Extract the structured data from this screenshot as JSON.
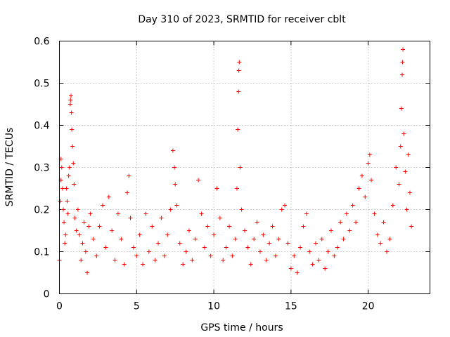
{
  "chart_data": {
    "type": "scatter",
    "title": "Day 310 of 2023, SRMTID for receiver cblt",
    "xlabel": "GPS time / hours",
    "ylabel": "SRMTID / TECUs",
    "xlim": [
      0,
      24
    ],
    "ylim": [
      0,
      0.6
    ],
    "x_ticks": [
      0,
      5,
      10,
      15,
      20
    ],
    "y_ticks": [
      0,
      0.1,
      0.2,
      0.3,
      0.4,
      0.5,
      0.6
    ],
    "x_tick_labels": [
      "0",
      "5",
      "10",
      "15",
      "20"
    ],
    "y_tick_labels": [
      "0",
      "0.1",
      "0.2",
      "0.3",
      "0.4",
      "0.5",
      "0.6"
    ],
    "grid": true,
    "series": [
      {
        "name": "SRMTID",
        "marker": "plus",
        "color": "#ff0000",
        "points": [
          [
            0.0,
            0.08
          ],
          [
            0.05,
            0.22
          ],
          [
            0.1,
            0.27
          ],
          [
            0.1,
            0.32
          ],
          [
            0.15,
            0.3
          ],
          [
            0.2,
            0.25
          ],
          [
            0.25,
            0.2
          ],
          [
            0.3,
            0.17
          ],
          [
            0.35,
            0.12
          ],
          [
            0.4,
            0.14
          ],
          [
            0.45,
            0.25
          ],
          [
            0.5,
            0.22
          ],
          [
            0.55,
            0.19
          ],
          [
            0.6,
            0.28
          ],
          [
            0.65,
            0.3
          ],
          [
            0.7,
            0.45
          ],
          [
            0.72,
            0.46
          ],
          [
            0.75,
            0.47
          ],
          [
            0.78,
            0.43
          ],
          [
            0.8,
            0.39
          ],
          [
            0.85,
            0.35
          ],
          [
            0.9,
            0.31
          ],
          [
            0.95,
            0.26
          ],
          [
            1.0,
            0.18
          ],
          [
            1.1,
            0.15
          ],
          [
            1.2,
            0.2
          ],
          [
            1.3,
            0.14
          ],
          [
            1.4,
            0.08
          ],
          [
            1.5,
            0.12
          ],
          [
            1.6,
            0.17
          ],
          [
            1.7,
            0.1
          ],
          [
            1.8,
            0.05
          ],
          [
            1.9,
            0.16
          ],
          [
            2.0,
            0.19
          ],
          [
            2.2,
            0.13
          ],
          [
            2.4,
            0.09
          ],
          [
            2.6,
            0.16
          ],
          [
            2.8,
            0.21
          ],
          [
            3.0,
            0.11
          ],
          [
            3.2,
            0.23
          ],
          [
            3.4,
            0.15
          ],
          [
            3.6,
            0.08
          ],
          [
            3.8,
            0.19
          ],
          [
            4.0,
            0.13
          ],
          [
            4.2,
            0.07
          ],
          [
            4.4,
            0.24
          ],
          [
            4.5,
            0.28
          ],
          [
            4.6,
            0.18
          ],
          [
            4.8,
            0.11
          ],
          [
            5.0,
            0.09
          ],
          [
            5.2,
            0.14
          ],
          [
            5.4,
            0.07
          ],
          [
            5.6,
            0.19
          ],
          [
            5.8,
            0.1
          ],
          [
            6.0,
            0.16
          ],
          [
            6.2,
            0.08
          ],
          [
            6.4,
            0.12
          ],
          [
            6.6,
            0.18
          ],
          [
            6.8,
            0.09
          ],
          [
            7.0,
            0.14
          ],
          [
            7.2,
            0.2
          ],
          [
            7.35,
            0.34
          ],
          [
            7.45,
            0.3
          ],
          [
            7.5,
            0.26
          ],
          [
            7.6,
            0.21
          ],
          [
            7.8,
            0.12
          ],
          [
            8.0,
            0.07
          ],
          [
            8.2,
            0.1
          ],
          [
            8.4,
            0.15
          ],
          [
            8.6,
            0.08
          ],
          [
            8.8,
            0.13
          ],
          [
            9.0,
            0.27
          ],
          [
            9.2,
            0.19
          ],
          [
            9.4,
            0.11
          ],
          [
            9.6,
            0.16
          ],
          [
            9.8,
            0.09
          ],
          [
            10.0,
            0.14
          ],
          [
            10.2,
            0.25
          ],
          [
            10.4,
            0.18
          ],
          [
            10.6,
            0.08
          ],
          [
            10.8,
            0.11
          ],
          [
            11.0,
            0.16
          ],
          [
            11.2,
            0.09
          ],
          [
            11.4,
            0.13
          ],
          [
            11.5,
            0.25
          ],
          [
            11.55,
            0.39
          ],
          [
            11.6,
            0.48
          ],
          [
            11.62,
            0.53
          ],
          [
            11.65,
            0.55
          ],
          [
            11.7,
            0.3
          ],
          [
            11.8,
            0.2
          ],
          [
            12.0,
            0.15
          ],
          [
            12.2,
            0.11
          ],
          [
            12.4,
            0.07
          ],
          [
            12.6,
            0.13
          ],
          [
            12.8,
            0.17
          ],
          [
            13.0,
            0.1
          ],
          [
            13.2,
            0.14
          ],
          [
            13.4,
            0.08
          ],
          [
            13.6,
            0.12
          ],
          [
            13.8,
            0.16
          ],
          [
            14.0,
            0.09
          ],
          [
            14.2,
            0.13
          ],
          [
            14.4,
            0.2
          ],
          [
            14.6,
            0.21
          ],
          [
            14.8,
            0.12
          ],
          [
            15.0,
            0.06
          ],
          [
            15.2,
            0.09
          ],
          [
            15.4,
            0.05
          ],
          [
            15.6,
            0.11
          ],
          [
            15.8,
            0.16
          ],
          [
            16.0,
            0.19
          ],
          [
            16.2,
            0.1
          ],
          [
            16.4,
            0.07
          ],
          [
            16.6,
            0.12
          ],
          [
            16.8,
            0.08
          ],
          [
            17.0,
            0.13
          ],
          [
            17.2,
            0.06
          ],
          [
            17.4,
            0.1
          ],
          [
            17.6,
            0.15
          ],
          [
            17.8,
            0.09
          ],
          [
            18.0,
            0.11
          ],
          [
            18.2,
            0.17
          ],
          [
            18.4,
            0.13
          ],
          [
            18.6,
            0.19
          ],
          [
            18.8,
            0.15
          ],
          [
            19.0,
            0.21
          ],
          [
            19.2,
            0.17
          ],
          [
            19.4,
            0.25
          ],
          [
            19.6,
            0.28
          ],
          [
            19.8,
            0.23
          ],
          [
            20.0,
            0.31
          ],
          [
            20.1,
            0.33
          ],
          [
            20.2,
            0.27
          ],
          [
            20.4,
            0.19
          ],
          [
            20.6,
            0.14
          ],
          [
            20.8,
            0.12
          ],
          [
            21.0,
            0.17
          ],
          [
            21.2,
            0.1
          ],
          [
            21.4,
            0.13
          ],
          [
            21.6,
            0.21
          ],
          [
            21.8,
            0.3
          ],
          [
            22.0,
            0.26
          ],
          [
            22.1,
            0.35
          ],
          [
            22.15,
            0.44
          ],
          [
            22.2,
            0.52
          ],
          [
            22.22,
            0.55
          ],
          [
            22.25,
            0.58
          ],
          [
            22.3,
            0.38
          ],
          [
            22.4,
            0.29
          ],
          [
            22.5,
            0.2
          ],
          [
            22.6,
            0.33
          ],
          [
            22.7,
            0.24
          ],
          [
            22.8,
            0.16
          ]
        ]
      }
    ]
  }
}
